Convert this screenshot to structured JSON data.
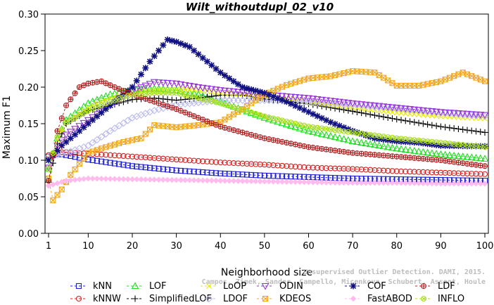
{
  "chart_data": {
    "type": "line",
    "title": "Wilt_withoutdupl_02_v10",
    "xlabel": "Neighborhood size",
    "ylabel": "Maximum F1",
    "xlim": [
      1,
      100
    ],
    "ylim": [
      0,
      0.3
    ],
    "xticks": [
      1,
      10,
      20,
      30,
      40,
      50,
      60,
      70,
      80,
      90,
      100
    ],
    "xtick_labels": [
      "1",
      "10",
      "20",
      "30",
      "40",
      "50",
      "60",
      "70",
      "80",
      "90",
      "100"
    ],
    "yticks": [
      0,
      0.05,
      0.1,
      0.15,
      0.2,
      0.25,
      0.3
    ],
    "ytick_labels": [
      "0.00",
      "0.05",
      "0.10",
      "0.15",
      "0.20",
      "0.25",
      "0.30"
    ],
    "grid": false,
    "legend_position": "bottom",
    "watermark": [
      "Unsupervised Outlier Detection. DAMI, 2015.",
      "Campos, Zimek, Sander, Campello, Micenkova, Schubert, Assent, Houle"
    ],
    "series": [
      {
        "name": "kNN",
        "color": "#1f1fd6",
        "marker": "square",
        "anchors": [
          [
            1,
            0.105
          ],
          [
            3,
            0.109
          ],
          [
            5,
            0.107
          ],
          [
            10,
            0.101
          ],
          [
            20,
            0.092
          ],
          [
            30,
            0.086
          ],
          [
            40,
            0.082
          ],
          [
            50,
            0.079
          ],
          [
            60,
            0.077
          ],
          [
            70,
            0.075
          ],
          [
            80,
            0.074
          ],
          [
            90,
            0.073
          ],
          [
            100,
            0.072
          ]
        ]
      },
      {
        "name": "kNNW",
        "color": "#d62020",
        "marker": "circle",
        "anchors": [
          [
            1,
            0.107
          ],
          [
            3,
            0.111
          ],
          [
            5,
            0.111
          ],
          [
            10,
            0.109
          ],
          [
            20,
            0.105
          ],
          [
            30,
            0.101
          ],
          [
            40,
            0.097
          ],
          [
            50,
            0.094
          ],
          [
            60,
            0.09
          ],
          [
            70,
            0.088
          ],
          [
            80,
            0.085
          ],
          [
            90,
            0.083
          ],
          [
            100,
            0.081
          ]
        ]
      },
      {
        "name": "LOF",
        "color": "#22dd22",
        "marker": "triangle-up",
        "anchors": [
          [
            1,
            0.088
          ],
          [
            3,
            0.13
          ],
          [
            5,
            0.155
          ],
          [
            10,
            0.178
          ],
          [
            15,
            0.19
          ],
          [
            20,
            0.196
          ],
          [
            25,
            0.198
          ],
          [
            30,
            0.196
          ],
          [
            35,
            0.19
          ],
          [
            40,
            0.18
          ],
          [
            50,
            0.158
          ],
          [
            60,
            0.14
          ],
          [
            70,
            0.126
          ],
          [
            80,
            0.116
          ],
          [
            90,
            0.108
          ],
          [
            100,
            0.102
          ]
        ]
      },
      {
        "name": "SimplifiedLOF",
        "color": "#000000",
        "marker": "plus",
        "anchors": [
          [
            1,
            0.07
          ],
          [
            3,
            0.122
          ],
          [
            5,
            0.15
          ],
          [
            10,
            0.168
          ],
          [
            15,
            0.175
          ],
          [
            20,
            0.183
          ],
          [
            25,
            0.185
          ],
          [
            30,
            0.182
          ],
          [
            35,
            0.185
          ],
          [
            40,
            0.189
          ],
          [
            45,
            0.189
          ],
          [
            50,
            0.184
          ],
          [
            60,
            0.177
          ],
          [
            70,
            0.167
          ],
          [
            80,
            0.156
          ],
          [
            90,
            0.146
          ],
          [
            100,
            0.138
          ]
        ]
      },
      {
        "name": "LoOP",
        "color": "#e8e800",
        "marker": "cross",
        "anchors": [
          [
            1,
            0.088
          ],
          [
            3,
            0.128
          ],
          [
            5,
            0.152
          ],
          [
            10,
            0.172
          ],
          [
            15,
            0.185
          ],
          [
            20,
            0.193
          ],
          [
            25,
            0.196
          ],
          [
            30,
            0.197
          ],
          [
            35,
            0.196
          ],
          [
            40,
            0.192
          ],
          [
            50,
            0.188
          ],
          [
            60,
            0.18
          ],
          [
            70,
            0.172
          ],
          [
            80,
            0.165
          ],
          [
            90,
            0.16
          ],
          [
            100,
            0.157
          ]
        ]
      },
      {
        "name": "LDOF",
        "color": "#bbbbee",
        "marker": "diamond",
        "anchors": [
          [
            1,
            0.105
          ],
          [
            5,
            0.11
          ],
          [
            10,
            0.12
          ],
          [
            15,
            0.14
          ],
          [
            20,
            0.158
          ],
          [
            25,
            0.168
          ],
          [
            30,
            0.176
          ],
          [
            40,
            0.182
          ],
          [
            50,
            0.182
          ],
          [
            60,
            0.18
          ],
          [
            70,
            0.176
          ],
          [
            80,
            0.171
          ],
          [
            90,
            0.165
          ],
          [
            100,
            0.16
          ]
        ]
      },
      {
        "name": "ODIN",
        "color": "#9933dd",
        "marker": "triangle-down",
        "anchors": [
          [
            1,
            0.09
          ],
          [
            3,
            0.12
          ],
          [
            5,
            0.135
          ],
          [
            10,
            0.155
          ],
          [
            15,
            0.175
          ],
          [
            20,
            0.195
          ],
          [
            25,
            0.207
          ],
          [
            30,
            0.205
          ],
          [
            35,
            0.2
          ],
          [
            40,
            0.196
          ],
          [
            50,
            0.19
          ],
          [
            60,
            0.185
          ],
          [
            70,
            0.178
          ],
          [
            80,
            0.172
          ],
          [
            90,
            0.166
          ],
          [
            100,
            0.162
          ]
        ]
      },
      {
        "name": "KDEOS",
        "color": "#f0a820",
        "marker": "square-x",
        "anchors": [
          [
            1,
            0.075
          ],
          [
            2,
            0.045
          ],
          [
            4,
            0.06
          ],
          [
            6,
            0.08
          ],
          [
            8,
            0.095
          ],
          [
            10,
            0.11
          ],
          [
            14,
            0.118
          ],
          [
            18,
            0.125
          ],
          [
            22,
            0.13
          ],
          [
            25,
            0.148
          ],
          [
            30,
            0.145
          ],
          [
            35,
            0.148
          ],
          [
            40,
            0.152
          ],
          [
            45,
            0.17
          ],
          [
            50,
            0.19
          ],
          [
            55,
            0.203
          ],
          [
            60,
            0.212
          ],
          [
            65,
            0.215
          ],
          [
            70,
            0.222
          ],
          [
            75,
            0.22
          ],
          [
            80,
            0.202
          ],
          [
            85,
            0.202
          ],
          [
            90,
            0.208
          ],
          [
            95,
            0.22
          ],
          [
            100,
            0.208
          ]
        ]
      },
      {
        "name": "COF",
        "color": "#101080",
        "marker": "asterisk",
        "anchors": [
          [
            1,
            0.1
          ],
          [
            4,
            0.12
          ],
          [
            8,
            0.14
          ],
          [
            12,
            0.16
          ],
          [
            16,
            0.18
          ],
          [
            20,
            0.2
          ],
          [
            24,
            0.235
          ],
          [
            28,
            0.265
          ],
          [
            30,
            0.262
          ],
          [
            33,
            0.255
          ],
          [
            36,
            0.24
          ],
          [
            40,
            0.22
          ],
          [
            45,
            0.2
          ],
          [
            50,
            0.192
          ],
          [
            55,
            0.18
          ],
          [
            60,
            0.166
          ],
          [
            65,
            0.152
          ],
          [
            70,
            0.14
          ],
          [
            75,
            0.13
          ],
          [
            80,
            0.126
          ],
          [
            85,
            0.124
          ],
          [
            90,
            0.12
          ],
          [
            100,
            0.119
          ]
        ]
      },
      {
        "name": "FastABOD",
        "color": "#ffbbee",
        "marker": "diamond-filled",
        "anchors": [
          [
            1,
            0.065
          ],
          [
            5,
            0.072
          ],
          [
            10,
            0.075
          ],
          [
            20,
            0.074
          ],
          [
            30,
            0.073
          ],
          [
            40,
            0.072
          ],
          [
            50,
            0.071
          ],
          [
            60,
            0.07
          ],
          [
            70,
            0.069
          ],
          [
            80,
            0.069
          ],
          [
            90,
            0.068
          ],
          [
            100,
            0.068
          ]
        ]
      },
      {
        "name": "LDF",
        "color": "#b02020",
        "marker": "circle-plus",
        "anchors": [
          [
            1,
            0.072
          ],
          [
            3,
            0.14
          ],
          [
            5,
            0.175
          ],
          [
            8,
            0.2
          ],
          [
            10,
            0.205
          ],
          [
            13,
            0.208
          ],
          [
            16,
            0.2
          ],
          [
            20,
            0.19
          ],
          [
            25,
            0.18
          ],
          [
            30,
            0.17
          ],
          [
            35,
            0.158
          ],
          [
            40,
            0.146
          ],
          [
            50,
            0.13
          ],
          [
            60,
            0.118
          ],
          [
            70,
            0.11
          ],
          [
            80,
            0.105
          ],
          [
            90,
            0.1
          ],
          [
            100,
            0.092
          ]
        ]
      },
      {
        "name": "INFLO",
        "color": "#aadd22",
        "marker": "circle-x",
        "anchors": [
          [
            1,
            0.088
          ],
          [
            3,
            0.132
          ],
          [
            5,
            0.152
          ],
          [
            10,
            0.168
          ],
          [
            15,
            0.18
          ],
          [
            20,
            0.19
          ],
          [
            25,
            0.192
          ],
          [
            30,
            0.192
          ],
          [
            35,
            0.185
          ],
          [
            40,
            0.178
          ],
          [
            50,
            0.16
          ],
          [
            60,
            0.146
          ],
          [
            70,
            0.138
          ],
          [
            80,
            0.13
          ],
          [
            90,
            0.124
          ],
          [
            100,
            0.118
          ]
        ]
      }
    ]
  }
}
